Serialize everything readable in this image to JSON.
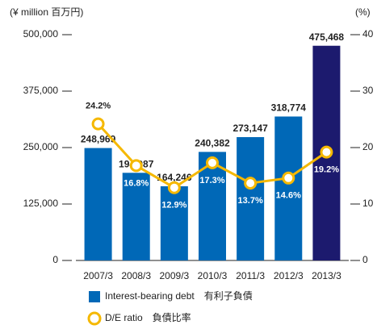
{
  "chart_data": {
    "type": "bar_line",
    "y_axis_label": "(¥ million  百万円)",
    "y2_axis_label": "(%)",
    "categories": [
      "2007/3",
      "2008/3",
      "2009/3",
      "2010/3",
      "2011/3",
      "2012/3",
      "2013/3"
    ],
    "series": [
      {
        "name": "Interest-bearing debt　有利子負債",
        "type": "bar",
        "color": "#0068b7",
        "colors": [
          "#0068b7",
          "#0068b7",
          "#0068b7",
          "#0068b7",
          "#0068b7",
          "#0068b7",
          "#1c1a6e"
        ],
        "values": [
          248969,
          194087,
          164246,
          240382,
          273147,
          318774,
          475468
        ],
        "value_labels": [
          "248,969",
          "194,087",
          "164,246",
          "240,382",
          "273,147",
          "318,774",
          "475,468"
        ]
      },
      {
        "name": "D/E ratio　負債比率",
        "type": "line",
        "axis": "y2",
        "color": "#f5b800",
        "values": [
          24.2,
          16.8,
          12.9,
          17.3,
          13.7,
          14.6,
          19.2
        ],
        "value_labels": [
          "24.2%",
          "16.8%",
          "12.9%",
          "17.3%",
          "13.7%",
          "14.6%",
          "19.2%"
        ]
      }
    ],
    "ylim": [
      0,
      500000
    ],
    "yticks": [
      0,
      {
        "value": 125000,
        "label": "125,000"
      },
      {
        "value": 250000,
        "label": "250,000"
      },
      {
        "value": 375000,
        "label": "375,000"
      },
      {
        "value": 500000,
        "label": "500,000"
      }
    ],
    "y2lim": [
      0,
      40
    ],
    "y2ticks": [
      0,
      10,
      20,
      30,
      40
    ]
  }
}
